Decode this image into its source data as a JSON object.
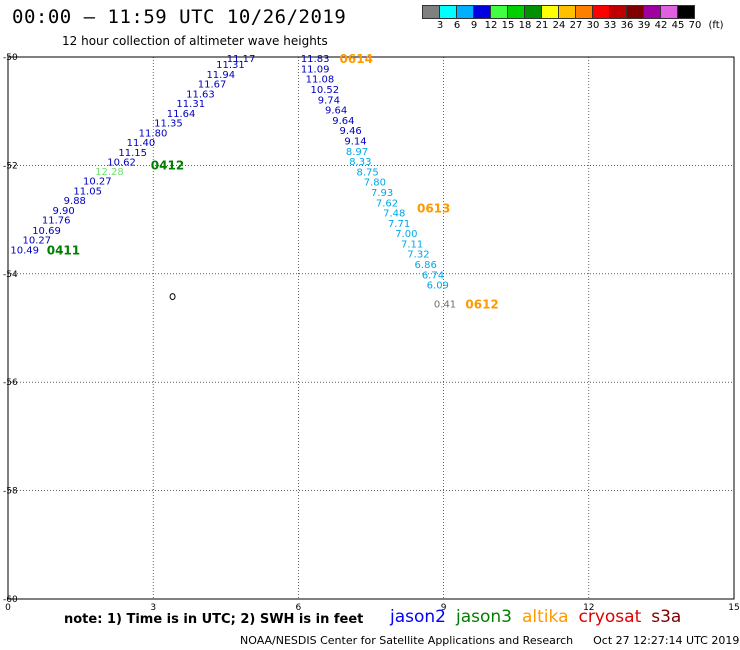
{
  "header": {
    "title": "00:00 – 11:59 UTC 10/26/2019",
    "subtitle": "12 hour collection of altimeter wave heights"
  },
  "legend": {
    "unit": "(ft)",
    "entries": [
      {
        "label": "3",
        "color": "#808080"
      },
      {
        "label": "6",
        "color": "#00ffff"
      },
      {
        "label": "9",
        "color": "#00b0ff"
      },
      {
        "label": "12",
        "color": "#0000e0"
      },
      {
        "label": "15",
        "color": "#40ff40"
      },
      {
        "label": "18",
        "color": "#00d000"
      },
      {
        "label": "21",
        "color": "#009000"
      },
      {
        "label": "24",
        "color": "#ffff00"
      },
      {
        "label": "27",
        "color": "#ffc000"
      },
      {
        "label": "30",
        "color": "#ff8000"
      },
      {
        "label": "33",
        "color": "#ff0000"
      },
      {
        "label": "36",
        "color": "#c00000"
      },
      {
        "label": "39",
        "color": "#800000"
      },
      {
        "label": "42",
        "color": "#a000a0"
      },
      {
        "label": "45",
        "color": "#e060e0"
      },
      {
        "label": "70",
        "color": "#000000"
      }
    ]
  },
  "map": {
    "lon_range": [
      0,
      15
    ],
    "lat_range": [
      -60,
      -50
    ],
    "lon_ticks": [
      {
        "value": 0,
        "label": "0"
      },
      {
        "value": 3,
        "label": "3"
      },
      {
        "value": 6,
        "label": "6"
      },
      {
        "value": 9,
        "label": "9"
      },
      {
        "value": 12,
        "label": "12"
      },
      {
        "value": 15,
        "label": "15"
      }
    ],
    "lat_ticks": [
      {
        "value": -50,
        "label": "-50"
      },
      {
        "value": -52,
        "label": "-52"
      },
      {
        "value": -54,
        "label": "-54"
      },
      {
        "value": -56,
        "label": "-56"
      },
      {
        "value": -58,
        "label": "-58"
      },
      {
        "value": -60,
        "label": "-60"
      }
    ],
    "grid": true,
    "colors": {
      "dark_blue": "#0000c0",
      "light_blue": "#00a8e8",
      "light_green": "#70e070",
      "gray": "#707070",
      "orange": "#ff9900",
      "green": "#008000"
    },
    "islands": [
      {
        "lon": 3.4,
        "lat": -54.42,
        "name": "island-outline"
      }
    ],
    "tracks": [
      {
        "name": "pass-0411-0412",
        "points": [
          {
            "lon": 0.05,
            "lat": -53.55,
            "value": "10.49",
            "color": "#0000c0"
          },
          {
            "lon": 0.3,
            "lat": -53.37,
            "value": "10.27",
            "color": "#0000c0"
          },
          {
            "lon": 0.5,
            "lat": -53.19,
            "value": "10.69",
            "color": "#0000c0"
          },
          {
            "lon": 0.7,
            "lat": -53.0,
            "value": "11.76",
            "color": "#0000c0"
          },
          {
            "lon": 0.92,
            "lat": -52.82,
            "value": "9.90",
            "color": "#0000c0"
          },
          {
            "lon": 1.15,
            "lat": -52.64,
            "value": "9.88",
            "color": "#0000c0"
          },
          {
            "lon": 1.35,
            "lat": -52.46,
            "value": "11.05",
            "color": "#0000c0"
          },
          {
            "lon": 1.55,
            "lat": -52.28,
            "value": "10.27",
            "color": "#0000c0"
          },
          {
            "lon": 1.8,
            "lat": -52.1,
            "value": "12.28",
            "color": "#70e070"
          },
          {
            "lon": 2.05,
            "lat": -51.93,
            "value": "10.62",
            "color": "#0000c0"
          },
          {
            "lon": 2.28,
            "lat": -51.75,
            "value": "11.15",
            "color": "#0000c0"
          },
          {
            "lon": 2.45,
            "lat": -51.57,
            "value": "11.40",
            "color": "#0000c0"
          },
          {
            "lon": 2.7,
            "lat": -51.39,
            "value": "11.80",
            "color": "#0000c0"
          },
          {
            "lon": 3.02,
            "lat": -51.21,
            "value": "11.35",
            "color": "#0000c0"
          },
          {
            "lon": 3.28,
            "lat": -51.03,
            "value": "11.64",
            "color": "#0000c0"
          },
          {
            "lon": 3.48,
            "lat": -50.85,
            "value": "11.31",
            "color": "#0000c0"
          },
          {
            "lon": 3.68,
            "lat": -50.67,
            "value": "11.63",
            "color": "#0000c0"
          },
          {
            "lon": 3.92,
            "lat": -50.49,
            "value": "11.67",
            "color": "#0000c0"
          },
          {
            "lon": 4.1,
            "lat": -50.31,
            "value": "11.94",
            "color": "#0000c0"
          },
          {
            "lon": 4.3,
            "lat": -50.13,
            "value": "11.31",
            "color": "#0000c0"
          },
          {
            "lon": 4.52,
            "lat": -50.02,
            "value": "11.17",
            "color": "#0000c0"
          }
        ],
        "time_labels": [
          {
            "lon": 0.8,
            "lat": -53.55,
            "label": "0411",
            "color": "#008000"
          },
          {
            "lon": 2.95,
            "lat": -51.98,
            "label": "0412",
            "color": "#008000"
          }
        ]
      },
      {
        "name": "pass-0612-0614",
        "points": [
          {
            "lon": 6.05,
            "lat": -50.02,
            "value": "11.83",
            "color": "#0000c0"
          },
          {
            "lon": 6.05,
            "lat": -50.21,
            "value": "11.09",
            "color": "#0000c0"
          },
          {
            "lon": 6.15,
            "lat": -50.4,
            "value": "11.08",
            "color": "#0000c0"
          },
          {
            "lon": 6.25,
            "lat": -50.59,
            "value": "10.52",
            "color": "#0000c0"
          },
          {
            "lon": 6.4,
            "lat": -50.78,
            "value": "9.74",
            "color": "#0000c0"
          },
          {
            "lon": 6.55,
            "lat": -50.97,
            "value": "9.64",
            "color": "#0000c0"
          },
          {
            "lon": 6.7,
            "lat": -51.16,
            "value": "9.64",
            "color": "#0000c0"
          },
          {
            "lon": 6.85,
            "lat": -51.35,
            "value": "9.46",
            "color": "#0000c0"
          },
          {
            "lon": 6.95,
            "lat": -51.54,
            "value": "9.14",
            "color": "#0000c0"
          },
          {
            "lon": 6.98,
            "lat": -51.73,
            "value": "8.97",
            "color": "#00a8e8"
          },
          {
            "lon": 7.05,
            "lat": -51.92,
            "value": "8.33",
            "color": "#00a8e8"
          },
          {
            "lon": 7.2,
            "lat": -52.11,
            "value": "8.75",
            "color": "#00a8e8"
          },
          {
            "lon": 7.35,
            "lat": -52.3,
            "value": "7.80",
            "color": "#00a8e8"
          },
          {
            "lon": 7.5,
            "lat": -52.49,
            "value": "7.93",
            "color": "#00a8e8"
          },
          {
            "lon": 7.6,
            "lat": -52.68,
            "value": "7.62",
            "color": "#00a8e8"
          },
          {
            "lon": 7.75,
            "lat": -52.87,
            "value": "7.48",
            "color": "#00a8e8"
          },
          {
            "lon": 7.85,
            "lat": -53.06,
            "value": "7.71",
            "color": "#00a8e8"
          },
          {
            "lon": 8.0,
            "lat": -53.25,
            "value": "7.00",
            "color": "#00a8e8"
          },
          {
            "lon": 8.12,
            "lat": -53.44,
            "value": "7.11",
            "color": "#00a8e8"
          },
          {
            "lon": 8.25,
            "lat": -53.63,
            "value": "7.32",
            "color": "#00a8e8"
          },
          {
            "lon": 8.4,
            "lat": -53.82,
            "value": "6.86",
            "color": "#00a8e8"
          },
          {
            "lon": 8.55,
            "lat": -54.01,
            "value": "6.74",
            "color": "#00a8e8"
          },
          {
            "lon": 8.65,
            "lat": -54.2,
            "value": "6.09",
            "color": "#00a8e8"
          },
          {
            "lon": 8.8,
            "lat": -54.55,
            "value": "0.41",
            "color": "#707070"
          }
        ],
        "time_labels": [
          {
            "lon": 6.85,
            "lat": -50.02,
            "label": "0614",
            "color": "#ff9900"
          },
          {
            "lon": 8.45,
            "lat": -52.78,
            "label": "0613",
            "color": "#ff9900"
          },
          {
            "lon": 9.45,
            "lat": -54.55,
            "label": "0612",
            "color": "#ff9900"
          }
        ]
      }
    ]
  },
  "footer": {
    "note": "note:  1) Time is in UTC;  2) SWH is in feet",
    "satellites": [
      {
        "name": "jason2",
        "color": "#0000ff"
      },
      {
        "name": "jason3",
        "color": "#008000"
      },
      {
        "name": "altika",
        "color": "#ff9900"
      },
      {
        "name": "cryosat",
        "color": "#e00000"
      },
      {
        "name": "s3a",
        "color": "#800000"
      }
    ],
    "credit": "NOAA/NESDIS Center for Satellite Applications and Research",
    "timestamp": "Oct 27 12:27:14 UTC 2019"
  }
}
